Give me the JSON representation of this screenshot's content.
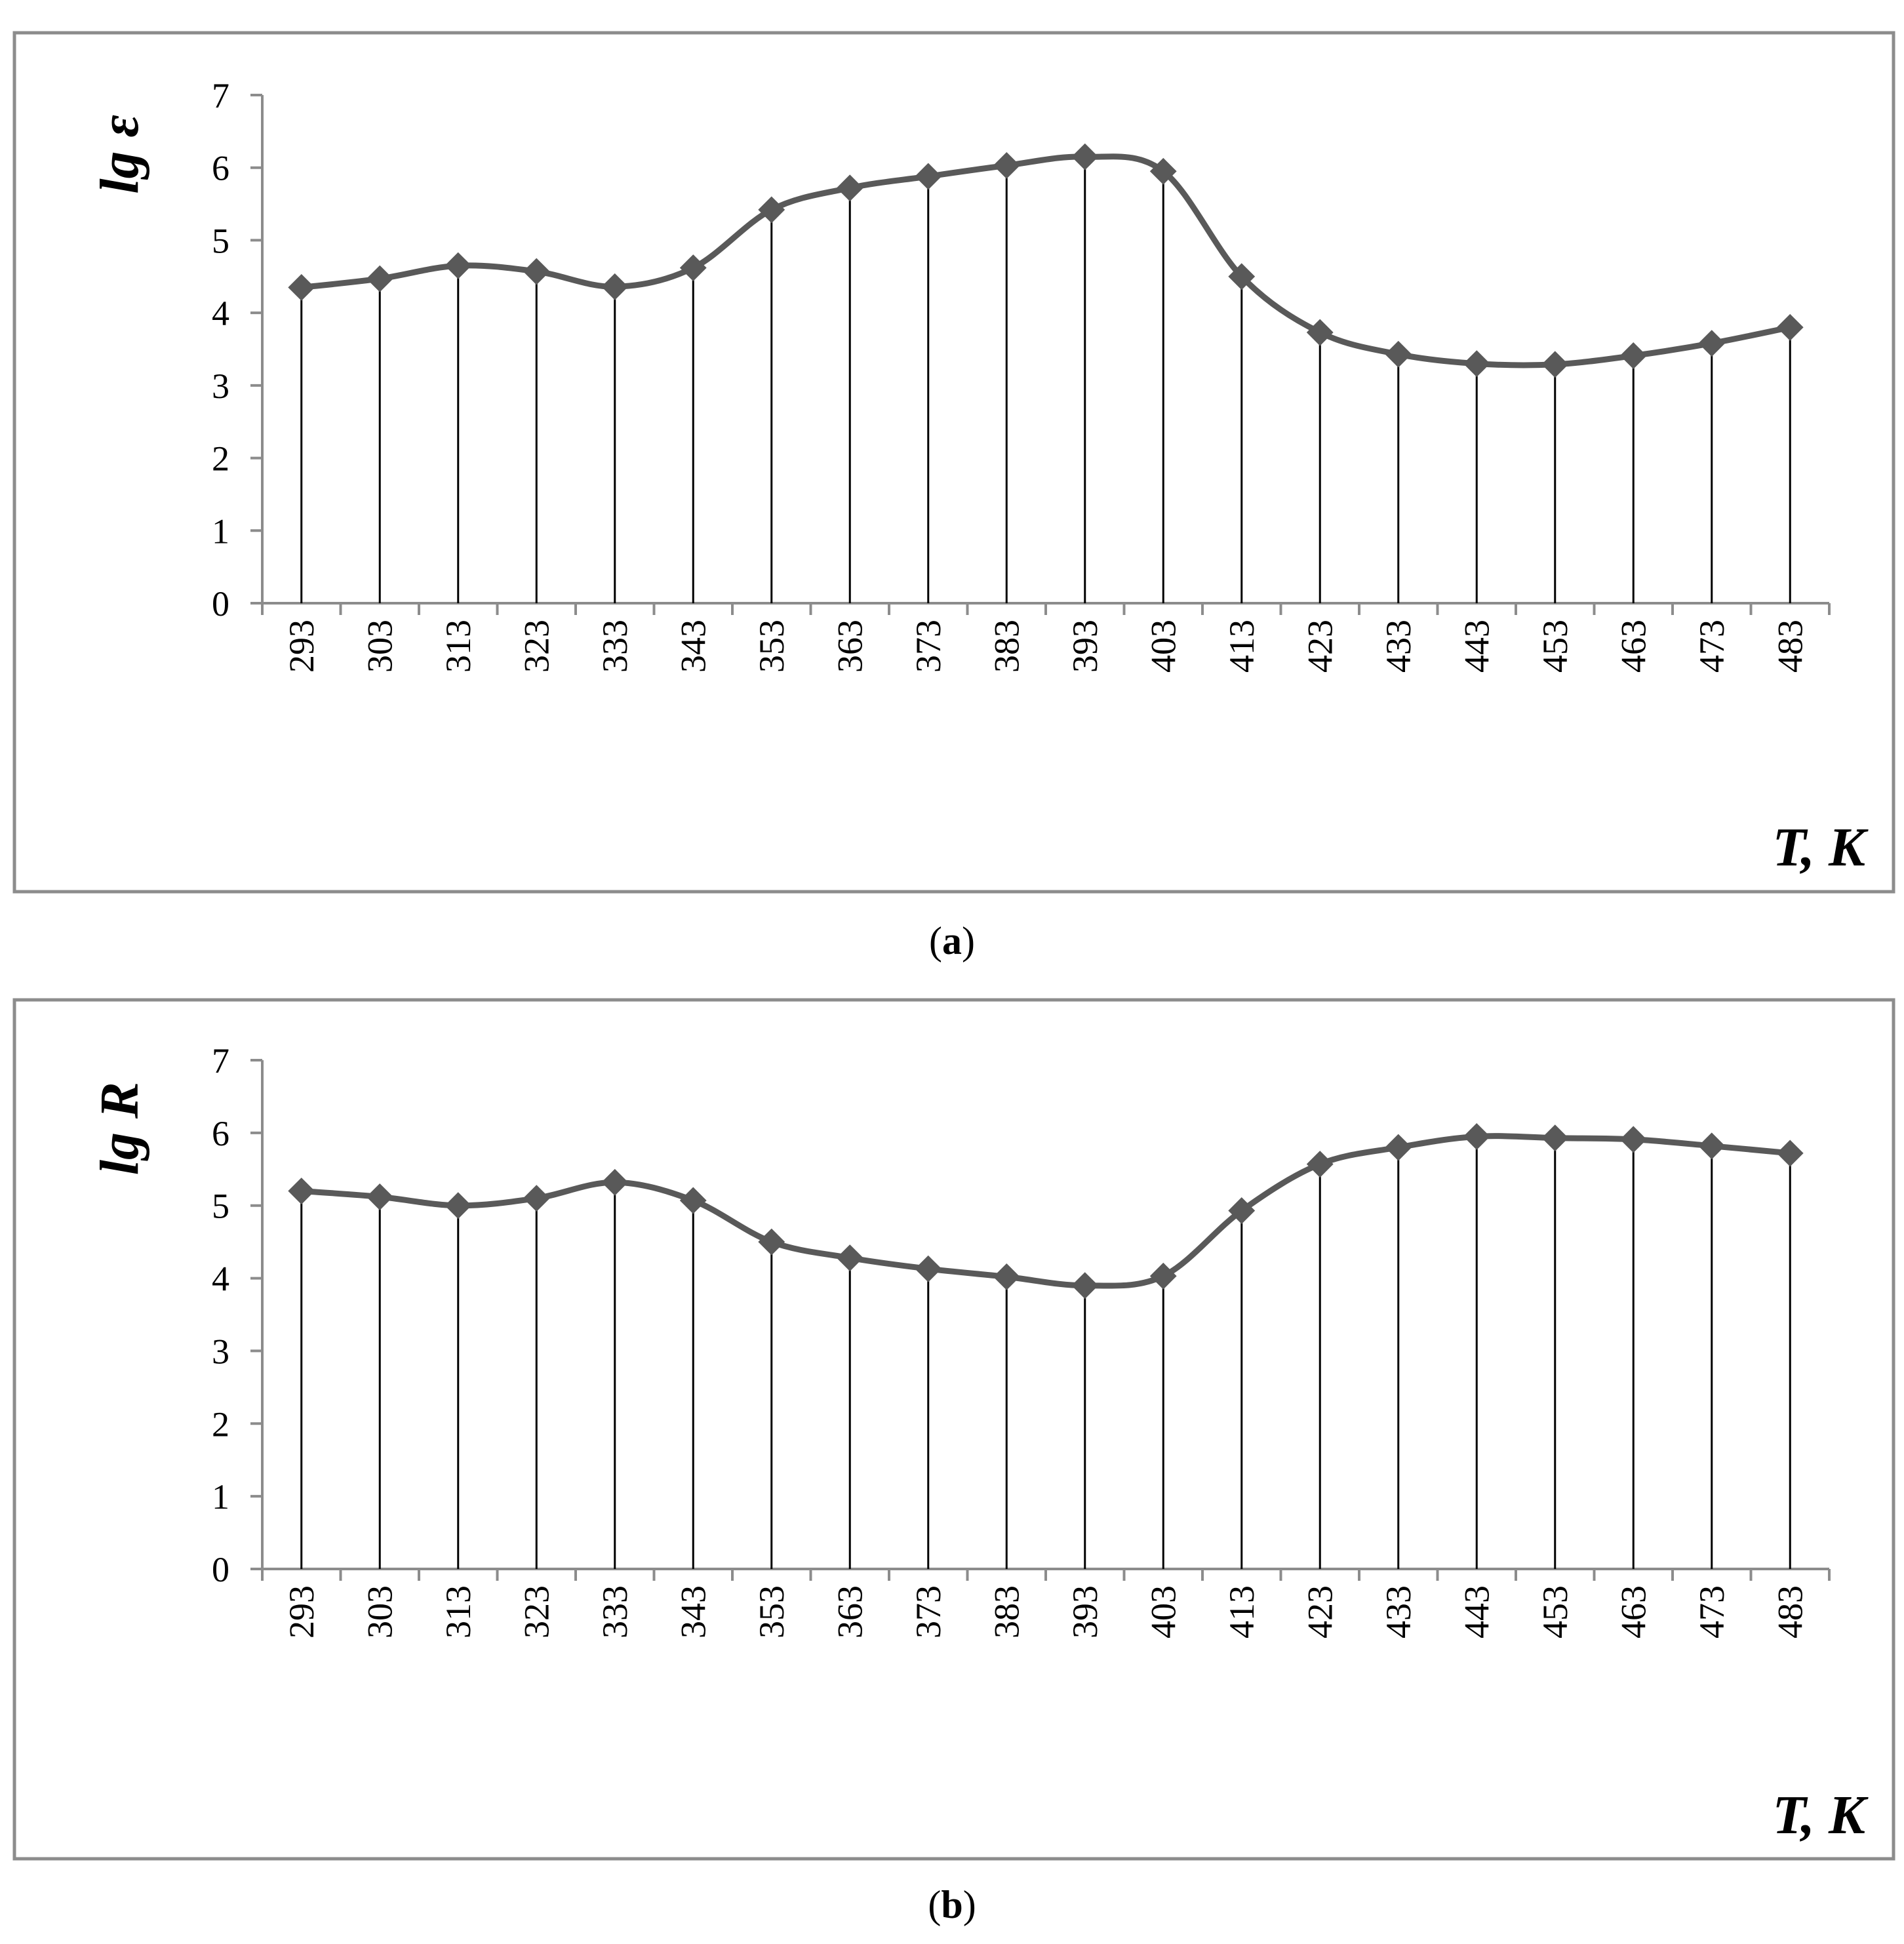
{
  "chart_data": [
    {
      "type": "line",
      "panel_caption": {
        "open": "(",
        "label": "a",
        "close": ")"
      },
      "ylabel": "lg ε",
      "xlabel": "T, K",
      "ylim": [
        0,
        7
      ],
      "yticks": [
        "0",
        "1",
        "2",
        "3",
        "4",
        "5",
        "6",
        "7"
      ],
      "categories": [
        "293",
        "303",
        "313",
        "323",
        "333",
        "343",
        "353",
        "363",
        "373",
        "383",
        "393",
        "403",
        "413",
        "423",
        "433",
        "443",
        "453",
        "463",
        "473",
        "483"
      ],
      "series": [
        {
          "values": [
            4.35,
            4.47,
            4.65,
            4.57,
            4.36,
            4.62,
            5.42,
            5.72,
            5.88,
            6.03,
            6.15,
            5.95,
            4.5,
            3.73,
            3.43,
            3.3,
            3.29,
            3.41,
            3.58,
            3.8
          ]
        }
      ],
      "marker": "diamond",
      "drop_lines": true,
      "smooth": true,
      "grid": false,
      "line_color": "#595959",
      "drop_line_color": "#000000",
      "frame_color": "#8c8c8c"
    },
    {
      "type": "line",
      "panel_caption": {
        "open": "(",
        "label": "b",
        "close": ")"
      },
      "ylabel": "lg R",
      "xlabel": "T, K",
      "ylim": [
        0,
        7
      ],
      "yticks": [
        "0",
        "1",
        "2",
        "3",
        "4",
        "5",
        "6",
        "7"
      ],
      "categories": [
        "293",
        "303",
        "313",
        "323",
        "333",
        "343",
        "353",
        "363",
        "373",
        "383",
        "393",
        "403",
        "413",
        "423",
        "433",
        "443",
        "453",
        "463",
        "473",
        "483"
      ],
      "series": [
        {
          "values": [
            5.2,
            5.12,
            5.0,
            5.1,
            5.32,
            5.07,
            4.5,
            4.28,
            4.13,
            4.02,
            3.9,
            4.03,
            4.93,
            5.57,
            5.8,
            5.95,
            5.93,
            5.91,
            5.82,
            5.72
          ]
        }
      ],
      "marker": "diamond",
      "drop_lines": true,
      "smooth": true,
      "grid": false,
      "line_color": "#595959",
      "drop_line_color": "#000000",
      "frame_color": "#8c8c8c"
    }
  ]
}
